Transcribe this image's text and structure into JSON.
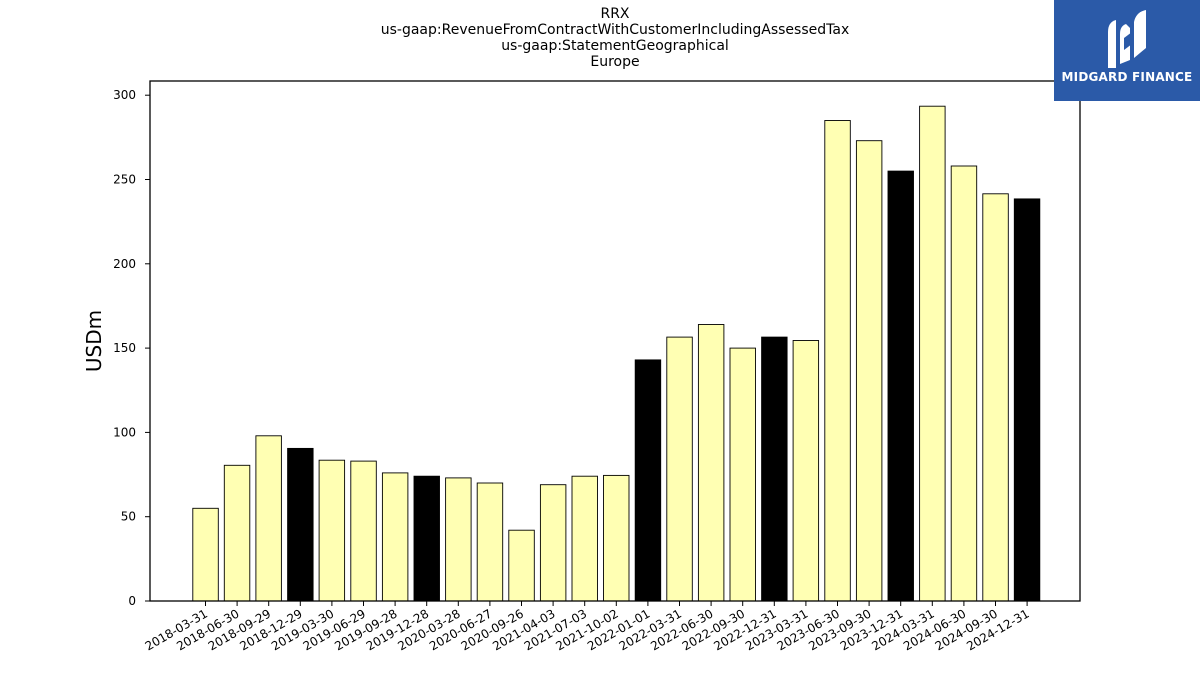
{
  "chart_data": {
    "type": "bar",
    "title_lines": [
      "RRX",
      "us-gaap:RevenueFromContractWithCustomerIncludingAssessedTax",
      "us-gaap:StatementGeographical",
      "Europe"
    ],
    "xlabel": "",
    "ylabel": "USDm",
    "ylim": [
      0,
      308
    ],
    "yticks": [
      0,
      50,
      100,
      150,
      200,
      250,
      300
    ],
    "grid": false,
    "categories": [
      "2018-03-31",
      "2018-06-30",
      "2018-09-29",
      "2018-12-29",
      "2019-03-30",
      "2019-06-29",
      "2019-09-28",
      "2019-12-28",
      "2020-03-28",
      "2020-06-27",
      "2020-09-26",
      "2021-04-03",
      "2021-07-03",
      "2021-10-02",
      "2022-01-01",
      "2022-03-31",
      "2022-06-30",
      "2022-09-30",
      "2022-12-31",
      "2023-03-31",
      "2023-06-30",
      "2023-09-30",
      "2023-12-31",
      "2024-03-31",
      "2024-06-30",
      "2024-09-30",
      "2024-12-31"
    ],
    "values": [
      55,
      80.5,
      98,
      90.5,
      83.5,
      83,
      76,
      74,
      73,
      70,
      42,
      69,
      74,
      74.5,
      143,
      156.5,
      164,
      150,
      156.5,
      154.5,
      285,
      273,
      255,
      293.5,
      258,
      241.5,
      238.5
    ],
    "highlight": [
      false,
      false,
      false,
      true,
      false,
      false,
      false,
      true,
      false,
      false,
      false,
      false,
      false,
      false,
      true,
      false,
      false,
      false,
      true,
      false,
      false,
      false,
      true,
      false,
      false,
      false,
      true
    ],
    "colors": {
      "bar": "#ffffb3",
      "highlight": "#000000",
      "edge": "#000000"
    }
  },
  "logo": {
    "text": "MIDGARD FINANCE",
    "background": "#2b5aa8"
  }
}
